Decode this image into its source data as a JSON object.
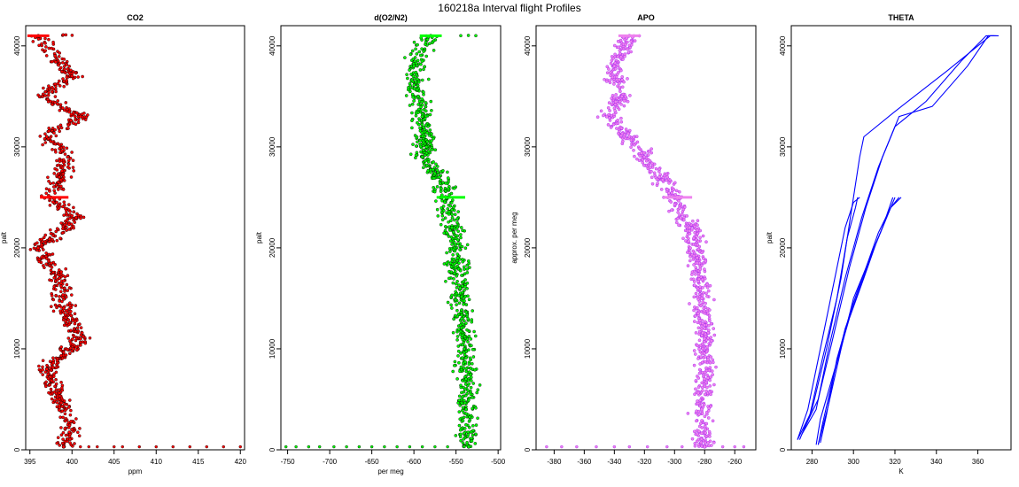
{
  "figure": {
    "title": "160218a   Interval flight Profiles"
  },
  "chart_data": [
    {
      "type": "scatter",
      "title": "CO2",
      "xlabel": "ppm",
      "ylabel": "palt",
      "xlim": [
        394.5,
        420.5
      ],
      "ylim": [
        0,
        42000
      ],
      "xticks": [
        395,
        400,
        405,
        410,
        415,
        420
      ],
      "yticks": [
        0,
        10000,
        20000,
        30000,
        40000
      ],
      "grid": false,
      "colors": {
        "fill": "#ff0000",
        "edge": "#000000"
      },
      "series": [
        {
          "x": [
            396,
            398,
            400,
            396.5,
            401,
            397,
            399.5,
            398.5,
            397.5,
            400.5,
            396,
            398.5,
            399,
            401,
            397,
            398.5,
            400,
            399
          ],
          "y": [
            41000,
            39000,
            37000,
            35000,
            33000,
            31000,
            29000,
            27000,
            25000,
            23000,
            20000,
            17000,
            14000,
            11000,
            8000,
            5000,
            2000,
            300
          ]
        }
      ],
      "baseline_scatter": {
        "x": [
          401,
          402,
          403,
          405,
          406,
          408,
          410,
          412,
          414,
          416,
          418,
          420
        ],
        "y": [
          300,
          300,
          300,
          300,
          300,
          300,
          300,
          300,
          300,
          300,
          300,
          300
        ]
      }
    },
    {
      "type": "scatter",
      "title": "d(O2/N2)",
      "xlabel": "per meg",
      "ylabel": "palt",
      "xlim": [
        -758,
        -497
      ],
      "ylim": [
        0,
        42000
      ],
      "xticks": [
        -750,
        -700,
        -650,
        -600,
        -550,
        -500
      ],
      "yticks": [
        0,
        10000,
        20000,
        30000,
        40000
      ],
      "grid": false,
      "colors": {
        "fill": "#00ff00",
        "edge": "#000000"
      },
      "series": [
        {
          "x": [
            -580,
            -600,
            -595,
            -590,
            -585,
            -590,
            -570,
            -560,
            -555,
            -548,
            -545,
            -543,
            -540,
            -538,
            -538,
            -535
          ],
          "y": [
            41000,
            38000,
            35000,
            33000,
            30000,
            29000,
            27000,
            25000,
            22000,
            19000,
            16000,
            13000,
            10000,
            7000,
            4000,
            300
          ]
        }
      ],
      "baseline_scatter": {
        "x": [
          -752,
          -740,
          -725,
          -712,
          -695,
          -680,
          -665,
          -650,
          -635,
          -620,
          -605,
          -590,
          -575,
          -560
        ],
        "y": [
          300,
          300,
          300,
          300,
          300,
          300,
          300,
          300,
          300,
          300,
          300,
          300,
          300,
          300
        ]
      }
    },
    {
      "type": "scatter",
      "title": "APO",
      "xlabel": "",
      "ylabel": "approx. per meg",
      "xlim": [
        -392,
        -246
      ],
      "ylim": [
        0,
        42000
      ],
      "xticks": [
        -380,
        -360,
        -340,
        -320,
        -300,
        -280,
        -260
      ],
      "yticks": [
        0,
        10000,
        20000,
        30000,
        40000
      ],
      "grid": false,
      "colors": {
        "fill": "#ee82ee",
        "edge": "#a020f0"
      },
      "series": [
        {
          "x": [
            -330,
            -340,
            -335,
            -345,
            -330,
            -320,
            -310,
            -300,
            -290,
            -285,
            -282,
            -280,
            -280,
            -282,
            -280
          ],
          "y": [
            41000,
            38000,
            35000,
            33000,
            31000,
            29000,
            27000,
            25000,
            22000,
            19000,
            15000,
            11000,
            7000,
            4000,
            300
          ]
        }
      ],
      "baseline_scatter": {
        "x": [
          -385,
          -375,
          -365,
          -352,
          -340,
          -330,
          -318,
          -305,
          -295,
          -268,
          -260,
          -254
        ],
        "y": [
          300,
          300,
          300,
          300,
          300,
          300,
          300,
          300,
          300,
          300,
          300,
          300
        ]
      }
    },
    {
      "type": "line",
      "title": "THETA",
      "xlabel": "K",
      "ylabel": "palt",
      "xlim": [
        270,
        376
      ],
      "ylim": [
        0,
        42000
      ],
      "xticks": [
        280,
        300,
        320,
        340,
        360
      ],
      "yticks": [
        0,
        10000,
        20000,
        30000,
        40000
      ],
      "grid": false,
      "colors": {
        "line": "#0000ff"
      },
      "series": [
        {
          "x": [
            274,
            280,
            287,
            294,
            300,
            303,
            305,
            320,
            345,
            366,
            370
          ],
          "y": [
            1000,
            4000,
            10000,
            17000,
            25000,
            29000,
            31000,
            33500,
            37500,
            41000,
            41000
          ]
        },
        {
          "x": [
            275,
            282,
            288,
            296,
            304,
            312,
            320,
            335,
            352,
            364,
            368
          ],
          "y": [
            1500,
            4000,
            10000,
            17000,
            23000,
            28000,
            32000,
            34500,
            38500,
            41000,
            41000
          ]
        },
        {
          "x": [
            276,
            283,
            290,
            298,
            306,
            314,
            322,
            338,
            355,
            365,
            369
          ],
          "y": [
            2000,
            5000,
            11000,
            18000,
            24000,
            29000,
            33000,
            34000,
            38000,
            41000,
            41000
          ]
        },
        {
          "x": [
            283,
            285,
            290,
            296,
            303,
            309,
            314,
            318,
            322
          ],
          "y": [
            500,
            2500,
            7000,
            12000,
            16000,
            19500,
            22000,
            24000,
            25000
          ]
        },
        {
          "x": [
            282,
            284,
            291,
            298,
            305,
            311,
            316,
            320
          ],
          "y": [
            500,
            3000,
            8000,
            13000,
            17000,
            20500,
            23000,
            25000
          ]
        },
        {
          "x": [
            284,
            287,
            292,
            299,
            306,
            312,
            318,
            323
          ],
          "y": [
            700,
            3500,
            9000,
            14000,
            18000,
            21500,
            24000,
            25000
          ]
        },
        {
          "x": [
            283,
            288,
            294,
            300,
            308,
            314,
            319
          ],
          "y": [
            500,
            4500,
            10000,
            15000,
            19000,
            22000,
            25000
          ]
        },
        {
          "x": [
            273,
            279,
            285,
            292,
            297,
            301,
            302
          ],
          "y": [
            1000,
            3500,
            9000,
            15000,
            21000,
            24000,
            25000
          ]
        },
        {
          "x": [
            273,
            278,
            284,
            290,
            296,
            300,
            303
          ],
          "y": [
            1000,
            4000,
            10000,
            16000,
            22000,
            24500,
            25000
          ]
        }
      ]
    }
  ]
}
